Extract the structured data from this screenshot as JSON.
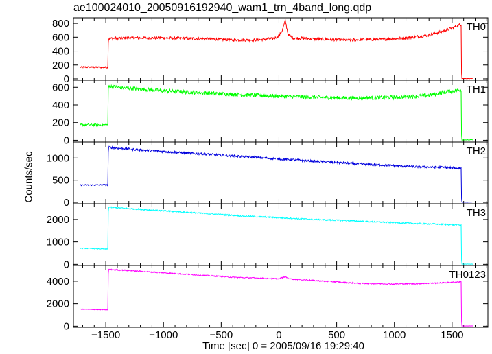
{
  "chart_data": {
    "type": "line",
    "title": "ae100024010_20050916192940_wam1_trn_4band_long.qdp",
    "xlabel": "Time [sec] 0 = 2005/09/16 19:29:40",
    "ylabel": "Counts/sec",
    "xlim": [
      -1780,
      1810
    ],
    "x_ticks": [
      -1500,
      -1000,
      -500,
      0,
      500,
      1000,
      1500
    ],
    "x_tick_labels": [
      "−1500",
      "−1000",
      "−500",
      "0",
      "500",
      "1000",
      "1500"
    ],
    "grid": false,
    "panels": [
      {
        "name": "TH0",
        "color": "#ff0000",
        "ylim": [
          -20,
          880
        ],
        "y_ticks": [
          0,
          200,
          400,
          600,
          800
        ],
        "points": [
          [
            -1720,
            170
          ],
          [
            -1480,
            165
          ],
          [
            -1478,
            580
          ],
          [
            -1300,
            590
          ],
          [
            -1000,
            590
          ],
          [
            -700,
            580
          ],
          [
            -400,
            560
          ],
          [
            -200,
            560
          ],
          [
            -50,
            580
          ],
          [
            0,
            620
          ],
          [
            30,
            700
          ],
          [
            55,
            840
          ],
          [
            80,
            640
          ],
          [
            120,
            590
          ],
          [
            300,
            575
          ],
          [
            600,
            560
          ],
          [
            900,
            570
          ],
          [
            1100,
            590
          ],
          [
            1300,
            630
          ],
          [
            1450,
            700
          ],
          [
            1580,
            790
          ],
          [
            1582,
            5
          ],
          [
            1680,
            5
          ]
        ],
        "noise": 20
      },
      {
        "name": "TH1",
        "color": "#00ff00",
        "ylim": [
          -20,
          680
        ],
        "y_ticks": [
          0,
          200,
          400,
          600
        ],
        "points": [
          [
            -1720,
            175
          ],
          [
            -1480,
            175
          ],
          [
            -1478,
            610
          ],
          [
            -1300,
            590
          ],
          [
            -1000,
            560
          ],
          [
            -700,
            540
          ],
          [
            -400,
            520
          ],
          [
            -100,
            505
          ],
          [
            200,
            490
          ],
          [
            500,
            480
          ],
          [
            800,
            480
          ],
          [
            1100,
            490
          ],
          [
            1300,
            510
          ],
          [
            1450,
            550
          ],
          [
            1580,
            570
          ],
          [
            1582,
            5
          ],
          [
            1680,
            5
          ]
        ],
        "noise": 22
      },
      {
        "name": "TH2",
        "color": "#0000dd",
        "ylim": [
          -30,
          1360
        ],
        "y_ticks": [
          0,
          500,
          1000
        ],
        "points": [
          [
            -1720,
            390
          ],
          [
            -1480,
            395
          ],
          [
            -1478,
            1240
          ],
          [
            -1200,
            1180
          ],
          [
            -900,
            1130
          ],
          [
            -600,
            1080
          ],
          [
            -300,
            1030
          ],
          [
            0,
            980
          ],
          [
            300,
            930
          ],
          [
            600,
            880
          ],
          [
            900,
            840
          ],
          [
            1200,
            800
          ],
          [
            1400,
            790
          ],
          [
            1580,
            770
          ],
          [
            1582,
            5
          ],
          [
            1680,
            5
          ]
        ],
        "noise": 25
      },
      {
        "name": "TH3",
        "color": "#00ffff",
        "ylim": [
          -50,
          2700
        ],
        "y_ticks": [
          0,
          1000,
          2000
        ],
        "points": [
          [
            -1720,
            720
          ],
          [
            -1480,
            680
          ],
          [
            -1478,
            2550
          ],
          [
            -1200,
            2450
          ],
          [
            -900,
            2350
          ],
          [
            -600,
            2250
          ],
          [
            -300,
            2150
          ],
          [
            0,
            2080
          ],
          [
            300,
            2000
          ],
          [
            600,
            1950
          ],
          [
            900,
            1880
          ],
          [
            1200,
            1820
          ],
          [
            1400,
            1790
          ],
          [
            1580,
            1750
          ],
          [
            1582,
            10
          ],
          [
            1680,
            10
          ]
        ],
        "noise": 30
      },
      {
        "name": "TH0123",
        "color": "#ff00ff",
        "ylim": [
          -100,
          5400
        ],
        "y_ticks": [
          0,
          2000,
          4000
        ],
        "points": [
          [
            -1720,
            1500
          ],
          [
            -1480,
            1450
          ],
          [
            -1478,
            5050
          ],
          [
            -1300,
            4950
          ],
          [
            -1000,
            4750
          ],
          [
            -700,
            4550
          ],
          [
            -400,
            4350
          ],
          [
            -100,
            4250
          ],
          [
            0,
            4200
          ],
          [
            50,
            4400
          ],
          [
            100,
            4200
          ],
          [
            400,
            4000
          ],
          [
            700,
            3800
          ],
          [
            1000,
            3750
          ],
          [
            1200,
            3780
          ],
          [
            1400,
            3850
          ],
          [
            1580,
            3950
          ],
          [
            1582,
            20
          ],
          [
            1680,
            20
          ]
        ],
        "noise": 50
      }
    ]
  }
}
